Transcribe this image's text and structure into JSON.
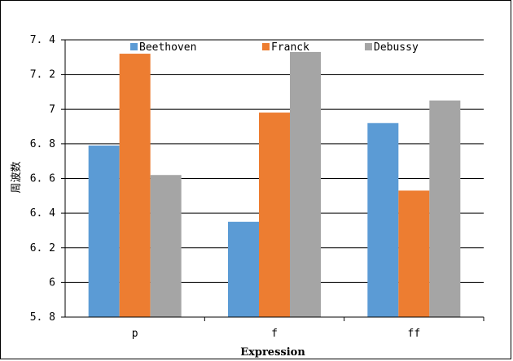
{
  "chart_data": {
    "type": "bar",
    "categories": [
      "p",
      "f",
      "ff"
    ],
    "series": [
      {
        "name": "Beethoven",
        "values": [
          6.79,
          6.35,
          6.92
        ],
        "color": "#5b9bd5"
      },
      {
        "name": "Franck",
        "values": [
          7.32,
          6.98,
          6.53
        ],
        "color": "#ed7d31"
      },
      {
        "name": "Debussy",
        "values": [
          6.62,
          7.33,
          7.05
        ],
        "color": "#a5a5a5"
      }
    ],
    "xlabel": "Expression",
    "ylabel": "周波数",
    "ylim": [
      5.8,
      7.4
    ],
    "yticks": [
      "5. 8",
      "6",
      "6. 2",
      "6. 4",
      "6. 6",
      "6. 8",
      "7",
      "7. 2",
      "7. 4"
    ],
    "ytick_values": [
      5.8,
      6.0,
      6.2,
      6.4,
      6.6,
      6.8,
      7.0,
      7.2,
      7.4
    ],
    "grid": true,
    "legend_position": "top"
  }
}
